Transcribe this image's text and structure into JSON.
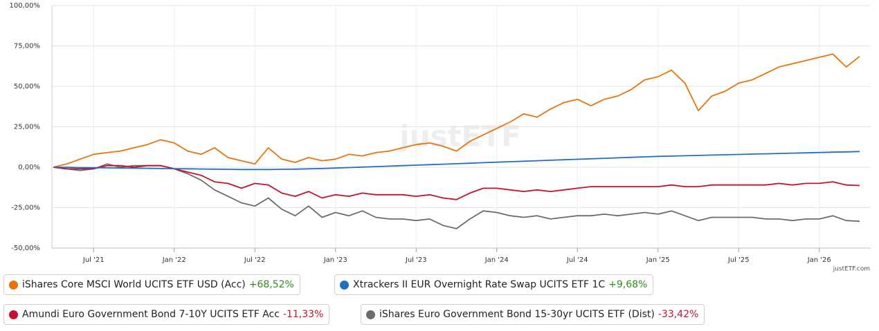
{
  "chart_data": {
    "type": "line",
    "watermark": "justETF",
    "credit": "justETF.com",
    "x": [
      "2021-04",
      "2021-05",
      "2021-06",
      "2021-07",
      "2021-08",
      "2021-09",
      "2021-10",
      "2021-11",
      "2021-12",
      "2022-01",
      "2022-02",
      "2022-03",
      "2022-04",
      "2022-05",
      "2022-06",
      "2022-07",
      "2022-08",
      "2022-09",
      "2022-10",
      "2022-11",
      "2022-12",
      "2023-01",
      "2023-02",
      "2023-03",
      "2023-04",
      "2023-05",
      "2023-06",
      "2023-07",
      "2023-08",
      "2023-09",
      "2023-10",
      "2023-11",
      "2023-12",
      "2024-01",
      "2024-02",
      "2024-03",
      "2024-04",
      "2024-05",
      "2024-06",
      "2024-07",
      "2024-08",
      "2024-09",
      "2024-10",
      "2024-11",
      "2024-12",
      "2025-01",
      "2025-02",
      "2025-03",
      "2025-04",
      "2025-05",
      "2025-06",
      "2025-07",
      "2025-08",
      "2025-09",
      "2025-10",
      "2025-11",
      "2025-12",
      "2026-01",
      "2026-02",
      "2026-03",
      "2026-04"
    ],
    "xlim": [
      "2021-04",
      "2026-04"
    ],
    "xticks": [
      {
        "value": "2021-07",
        "label": "Jul '21"
      },
      {
        "value": "2022-01",
        "label": "Jan '22"
      },
      {
        "value": "2022-07",
        "label": "Jul '22"
      },
      {
        "value": "2023-01",
        "label": "Jan '23"
      },
      {
        "value": "2023-07",
        "label": "Jul '23"
      },
      {
        "value": "2024-01",
        "label": "Jan '24"
      },
      {
        "value": "2024-07",
        "label": "Jul '24"
      },
      {
        "value": "2025-01",
        "label": "Jan '25"
      },
      {
        "value": "2025-07",
        "label": "Jul '25"
      },
      {
        "value": "2026-01",
        "label": "Jan '26"
      }
    ],
    "ylim": [
      -50,
      100
    ],
    "yticks": [
      {
        "value": -50,
        "label": "-50,00%"
      },
      {
        "value": -25,
        "label": "-25,00%"
      },
      {
        "value": 0,
        "label": "0,00%"
      },
      {
        "value": 25,
        "label": "25,00%"
      },
      {
        "value": 50,
        "label": "50,00%"
      },
      {
        "value": 75,
        "label": "75,00%"
      },
      {
        "value": 100,
        "label": "100,00%"
      }
    ],
    "grid": true,
    "series": [
      {
        "name": "iShares Core MSCI World UCITS ETF USD (Acc)",
        "change_label": "+68,52%",
        "change_color": "#2e8b1e",
        "color": "#e8730c",
        "values": [
          0,
          2,
          5,
          8,
          9,
          10,
          12,
          14,
          17,
          15,
          10,
          8,
          12,
          6,
          4,
          2,
          12,
          5,
          3,
          6,
          4,
          5,
          8,
          7,
          9,
          10,
          12,
          14,
          15,
          13,
          10,
          16,
          20,
          24,
          28,
          33,
          31,
          36,
          40,
          42,
          38,
          42,
          44,
          48,
          54,
          56,
          60,
          52,
          35,
          44,
          47,
          52,
          54,
          58,
          62,
          64,
          66,
          68,
          70,
          62,
          68.52
        ]
      },
      {
        "name": "Xtrackers II EUR Overnight Rate Swap UCITS ETF 1C",
        "change_label": "+9,68%",
        "change_color": "#2e8b1e",
        "color": "#1f6fc4",
        "values": [
          0,
          0,
          -0.2,
          -0.3,
          -0.4,
          -0.5,
          -0.6,
          -0.7,
          -0.8,
          -0.9,
          -1,
          -1.1,
          -1.2,
          -1.3,
          -1.4,
          -1.4,
          -1.4,
          -1.3,
          -1.2,
          -1,
          -0.8,
          -0.5,
          -0.2,
          0.1,
          0.4,
          0.7,
          1,
          1.3,
          1.6,
          1.9,
          2.2,
          2.5,
          2.8,
          3.1,
          3.4,
          3.7,
          4,
          4.3,
          4.6,
          4.9,
          5.2,
          5.5,
          5.8,
          6.1,
          6.4,
          6.7,
          6.9,
          7.1,
          7.3,
          7.5,
          7.7,
          7.9,
          8.1,
          8.3,
          8.5,
          8.7,
          8.9,
          9.1,
          9.3,
          9.5,
          9.68
        ]
      },
      {
        "name": "Amundi Euro Government Bond 7-10Y UCITS ETF Acc",
        "change_label": "-11,33%",
        "change_color": "#c0152f",
        "color": "#c8102e",
        "values": [
          0,
          -1,
          -1,
          -1,
          1,
          1,
          0,
          1,
          1,
          -1,
          -3,
          -5,
          -9,
          -10,
          -13,
          -10,
          -11,
          -16,
          -18,
          -15,
          -19,
          -17,
          -18,
          -16,
          -17,
          -17,
          -17,
          -18,
          -17,
          -19,
          -20,
          -16,
          -13,
          -13,
          -14,
          -15,
          -14,
          -15,
          -14,
          -13,
          -12,
          -12,
          -12,
          -12,
          -12,
          -12,
          -11,
          -12,
          -12,
          -11,
          -11,
          -11,
          -11,
          -11,
          -10,
          -11,
          -10,
          -10,
          -9,
          -11,
          -11.33
        ]
      },
      {
        "name": "iShares Euro Government Bond 15-30yr UCITS ETF (Dist)",
        "change_label": "-33,42%",
        "change_color": "#c0152f",
        "color": "#6b6b6b",
        "values": [
          0,
          -1,
          -2,
          -1,
          2,
          0,
          1,
          1,
          1,
          -1,
          -4,
          -8,
          -14,
          -18,
          -22,
          -24,
          -19,
          -26,
          -30,
          -24,
          -31,
          -28,
          -30,
          -27,
          -31,
          -32,
          -32,
          -33,
          -32,
          -36,
          -38,
          -32,
          -27,
          -28,
          -30,
          -31,
          -30,
          -32,
          -31,
          -30,
          -30,
          -29,
          -30,
          -29,
          -28,
          -29,
          -27,
          -30,
          -33,
          -31,
          -31,
          -31,
          -31,
          -32,
          -32,
          -33,
          -32,
          -32,
          -30,
          -33,
          -33.42
        ]
      }
    ]
  }
}
